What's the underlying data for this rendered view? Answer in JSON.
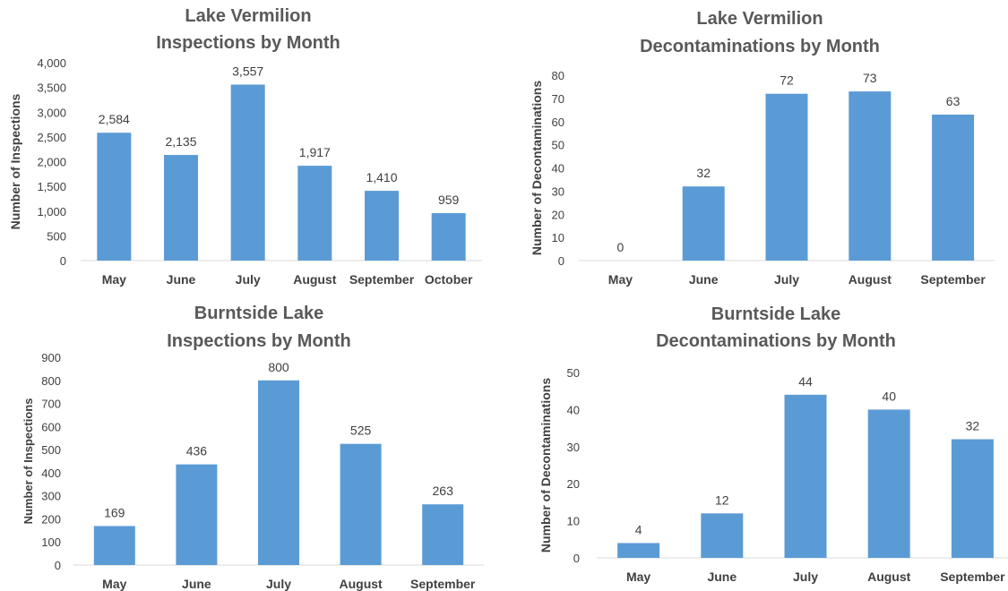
{
  "chart_data": [
    {
      "type": "bar",
      "title": [
        "Lake Vermilion",
        "Inspections by Month"
      ],
      "ylabel": "Number of Inspections",
      "categories": [
        "May",
        "June",
        "July",
        "August",
        "September",
        "October"
      ],
      "values": [
        2584,
        2135,
        3557,
        1917,
        1410,
        959
      ],
      "data_labels": [
        "2,584",
        "2,135",
        "3,557",
        "1,917",
        "1,410",
        "959"
      ],
      "ylim": [
        0,
        4000
      ],
      "yticks": [
        0,
        500,
        1000,
        1500,
        2000,
        2500,
        3000,
        3500,
        4000
      ],
      "ytick_labels": [
        "0",
        "500",
        "1,000",
        "1,500",
        "2,000",
        "2,500",
        "3,000",
        "3,500",
        "4,000"
      ],
      "color": "#5b9bd5",
      "grid": false,
      "legend": false
    },
    {
      "type": "bar",
      "title": [
        "Lake Vermilion",
        "Decontaminations by Month"
      ],
      "ylabel": "Number of Decontaminations",
      "categories": [
        "May",
        "June",
        "July",
        "August",
        "September"
      ],
      "values": [
        0,
        32,
        72,
        73,
        63
      ],
      "data_labels": [
        "0",
        "32",
        "72",
        "73",
        "63"
      ],
      "ylim": [
        0,
        80
      ],
      "yticks": [
        0,
        10,
        20,
        30,
        40,
        50,
        60,
        70,
        80
      ],
      "ytick_labels": [
        "0",
        "10",
        "20",
        "30",
        "40",
        "50",
        "60",
        "70",
        "80"
      ],
      "color": "#5b9bd5",
      "grid": false,
      "legend": false
    },
    {
      "type": "bar",
      "title": [
        "Burntside Lake",
        "Inspections by Month"
      ],
      "ylabel": "Number of Inspections",
      "categories": [
        "May",
        "June",
        "July",
        "August",
        "September"
      ],
      "values": [
        169,
        436,
        800,
        525,
        263
      ],
      "data_labels": [
        "169",
        "436",
        "800",
        "525",
        "263"
      ],
      "ylim": [
        0,
        900
      ],
      "yticks": [
        0,
        100,
        200,
        300,
        400,
        500,
        600,
        700,
        800,
        900
      ],
      "ytick_labels": [
        "0",
        "100",
        "200",
        "300",
        "400",
        "500",
        "600",
        "700",
        "800",
        "900"
      ],
      "color": "#5b9bd5",
      "grid": false,
      "legend": false
    },
    {
      "type": "bar",
      "title": [
        "Burntside Lake",
        "Decontaminations by Month"
      ],
      "ylabel": "Number of Decontaminations",
      "categories": [
        "May",
        "June",
        "July",
        "August",
        "September"
      ],
      "values": [
        4,
        12,
        44,
        40,
        32
      ],
      "data_labels": [
        "4",
        "12",
        "44",
        "40",
        "32"
      ],
      "ylim": [
        0,
        50
      ],
      "yticks": [
        0,
        10,
        20,
        30,
        40,
        50
      ],
      "ytick_labels": [
        "0",
        "10",
        "20",
        "30",
        "40",
        "50"
      ],
      "color": "#5b9bd5",
      "grid": false,
      "legend": false
    }
  ]
}
